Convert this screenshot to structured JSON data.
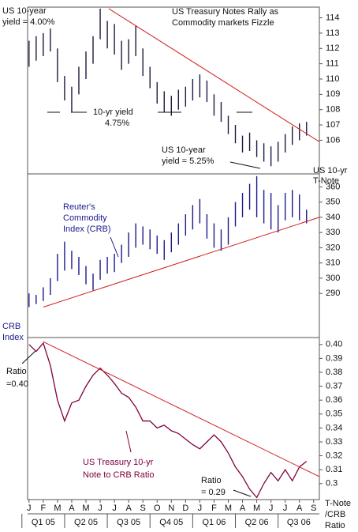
{
  "chart_data": [
    {
      "type": "range_bar",
      "title": [
        "US Treasury Notes Rally as",
        "Commodity markets Fizzle"
      ],
      "annotations": [
        [
          "US 10-year",
          "yield = 4.00%"
        ],
        [
          "10-yr yield",
          "4.75%"
        ],
        [
          "US 10-year",
          "yield = 5.25%"
        ]
      ],
      "axis_label": [
        "US 10-yr",
        "T-Note"
      ],
      "color": "#1a1a40",
      "x": [
        0,
        0.5,
        1,
        1.5,
        2,
        2.5,
        3,
        3.5,
        4,
        4.5,
        5,
        5.5,
        6,
        6.5,
        7,
        7.5,
        8,
        8.5,
        9,
        9.5,
        10,
        10.5,
        11,
        11.5,
        12,
        12.5,
        13,
        13.5,
        14,
        14.5,
        15,
        15.5,
        16,
        16.5,
        17,
        17.5,
        18,
        18.5,
        19,
        19.5
      ],
      "high": [
        112.5,
        112.8,
        113.0,
        113.3,
        112.0,
        110.2,
        109.5,
        110.8,
        111.8,
        112.8,
        114.6,
        113.8,
        113.6,
        112.5,
        112.6,
        113.5,
        112.0,
        110.8,
        109.8,
        109.2,
        108.9,
        109.3,
        109.5,
        110.0,
        110.3,
        109.9,
        109.0,
        108.5,
        107.6,
        107.0,
        106.3,
        106.5,
        106.0,
        105.8,
        105.6,
        105.9,
        106.4,
        106.9,
        107.1,
        107.2
      ],
      "low": [
        110.8,
        111.2,
        111.5,
        111.8,
        109.8,
        108.6,
        107.8,
        109.0,
        110.0,
        111.0,
        112.6,
        112.0,
        111.6,
        110.6,
        111.0,
        111.5,
        110.2,
        109.4,
        108.4,
        107.8,
        107.6,
        108.0,
        108.2,
        108.6,
        108.8,
        108.5,
        107.6,
        107.2,
        106.4,
        105.8,
        105.2,
        105.3,
        104.9,
        104.6,
        104.3,
        104.6,
        105.2,
        105.7,
        106.0,
        106.3
      ],
      "trendline": {
        "x": [
          5.6,
          20.4
        ],
        "values": [
          114.6,
          105.9
        ],
        "color": "#d02020"
      },
      "ylim": [
        103.8,
        114.7
      ],
      "yticks": [
        106,
        107,
        108,
        109,
        110,
        111,
        112,
        113,
        114
      ]
    },
    {
      "type": "range_bar",
      "annotations": [
        [
          "Reuter's",
          "Commodity",
          "Index (CRB)"
        ]
      ],
      "axis_label": [
        "CRB",
        "Index"
      ],
      "color": "#1a1a8c",
      "x": [
        0,
        0.5,
        1,
        1.5,
        2,
        2.5,
        3,
        3.5,
        4,
        4.5,
        5,
        5.5,
        6,
        6.5,
        7,
        7.5,
        8,
        8.5,
        9,
        9.5,
        10,
        10.5,
        11,
        11.5,
        12,
        12.5,
        13,
        13.5,
        14,
        14.5,
        15,
        15.5,
        16,
        16.5,
        17,
        17.5,
        18,
        18.5,
        19,
        19.5
      ],
      "high": [
        290,
        289,
        294,
        300,
        316,
        324,
        318,
        314,
        308,
        303,
        312,
        314,
        316,
        322,
        330,
        336,
        334,
        332,
        328,
        325,
        330,
        336,
        342,
        348,
        352,
        342,
        336,
        332,
        340,
        350,
        356,
        362,
        367,
        358,
        356,
        348,
        356,
        358,
        355,
        345
      ],
      "low": [
        281,
        283,
        285,
        289,
        298,
        305,
        306,
        302,
        296,
        292,
        299,
        303,
        304,
        310,
        314,
        320,
        322,
        319,
        316,
        312,
        317,
        322,
        328,
        332,
        336,
        326,
        320,
        318,
        322,
        334,
        340,
        345,
        340,
        336,
        332,
        330,
        338,
        340,
        338,
        336
      ],
      "trendline": {
        "x": [
          1,
          20.4
        ],
        "values": [
          281,
          340
        ],
        "color": "#d02020"
      },
      "ylim": [
        261,
        368.5
      ],
      "yticks": [
        290,
        300,
        310,
        320,
        330,
        340,
        350,
        360
      ]
    },
    {
      "type": "line",
      "annotations": [
        [
          "Ratio",
          "=0.40"
        ],
        [
          "US Treasury 10-yr",
          "Note to CRB Ratio"
        ],
        [
          "Ratio",
          "= 0.29"
        ]
      ],
      "axis_label": [
        "T-Note",
        "/CRB",
        "Ratio"
      ],
      "color": "#800040",
      "x": [
        0,
        0.5,
        1,
        1.5,
        2,
        2.5,
        3,
        3.5,
        4,
        4.5,
        5,
        5.5,
        6,
        6.5,
        7,
        7.5,
        8,
        8.5,
        9,
        9.5,
        10,
        10.5,
        11,
        11.5,
        12,
        12.5,
        13,
        13.5,
        14,
        14.5,
        15,
        15.5,
        16,
        16.5,
        17,
        17.5,
        18,
        18.5,
        19,
        19.5
      ],
      "values": [
        0.4,
        0.395,
        0.401,
        0.385,
        0.36,
        0.345,
        0.358,
        0.36,
        0.37,
        0.378,
        0.383,
        0.378,
        0.372,
        0.365,
        0.362,
        0.355,
        0.345,
        0.345,
        0.34,
        0.342,
        0.338,
        0.336,
        0.332,
        0.328,
        0.325,
        0.33,
        0.335,
        0.33,
        0.322,
        0.312,
        0.305,
        0.296,
        0.29,
        0.3,
        0.308,
        0.302,
        0.31,
        0.302,
        0.312,
        0.316
      ],
      "trendline": {
        "x": [
          1,
          20.4
        ],
        "values": [
          0.402,
          0.305
        ],
        "color": "#d02020"
      },
      "ylim": [
        0.2885,
        0.405
      ],
      "yticks": [
        {
          "value": 0.4,
          "label": "0.40"
        },
        0.39,
        0.38,
        0.37,
        0.36,
        0.35,
        0.34,
        0.33,
        0.32,
        0.31,
        0.3
      ],
      "xlim": [
        -0.1,
        20.4
      ],
      "xticks": [
        {
          "value": 0,
          "label": "J"
        },
        {
          "value": 1,
          "label": "F"
        },
        {
          "value": 2,
          "label": "M"
        },
        {
          "value": 3,
          "label": "A"
        },
        {
          "value": 4,
          "label": "M"
        },
        {
          "value": 5,
          "label": "J"
        },
        {
          "value": 6,
          "label": "J"
        },
        {
          "value": 7,
          "label": "A"
        },
        {
          "value": 8,
          "label": "S"
        },
        {
          "value": 9,
          "label": "O"
        },
        {
          "value": 10,
          "label": "N"
        },
        {
          "value": 11,
          "label": "D"
        },
        {
          "value": 12,
          "label": "J"
        },
        {
          "value": 13,
          "label": "F"
        },
        {
          "value": 14,
          "label": "M"
        },
        {
          "value": 15,
          "label": "A"
        },
        {
          "value": 16,
          "label": "M"
        },
        {
          "value": 17,
          "label": "J"
        },
        {
          "value": 18,
          "label": "J"
        },
        {
          "value": 19,
          "label": "A"
        },
        {
          "value": 20,
          "label": "S"
        }
      ],
      "quarters": [
        "Q1 05",
        "Q2 05",
        "Q3 05",
        "Q4 05",
        "Q1 06",
        "Q2 06",
        "Q3 06"
      ]
    }
  ]
}
